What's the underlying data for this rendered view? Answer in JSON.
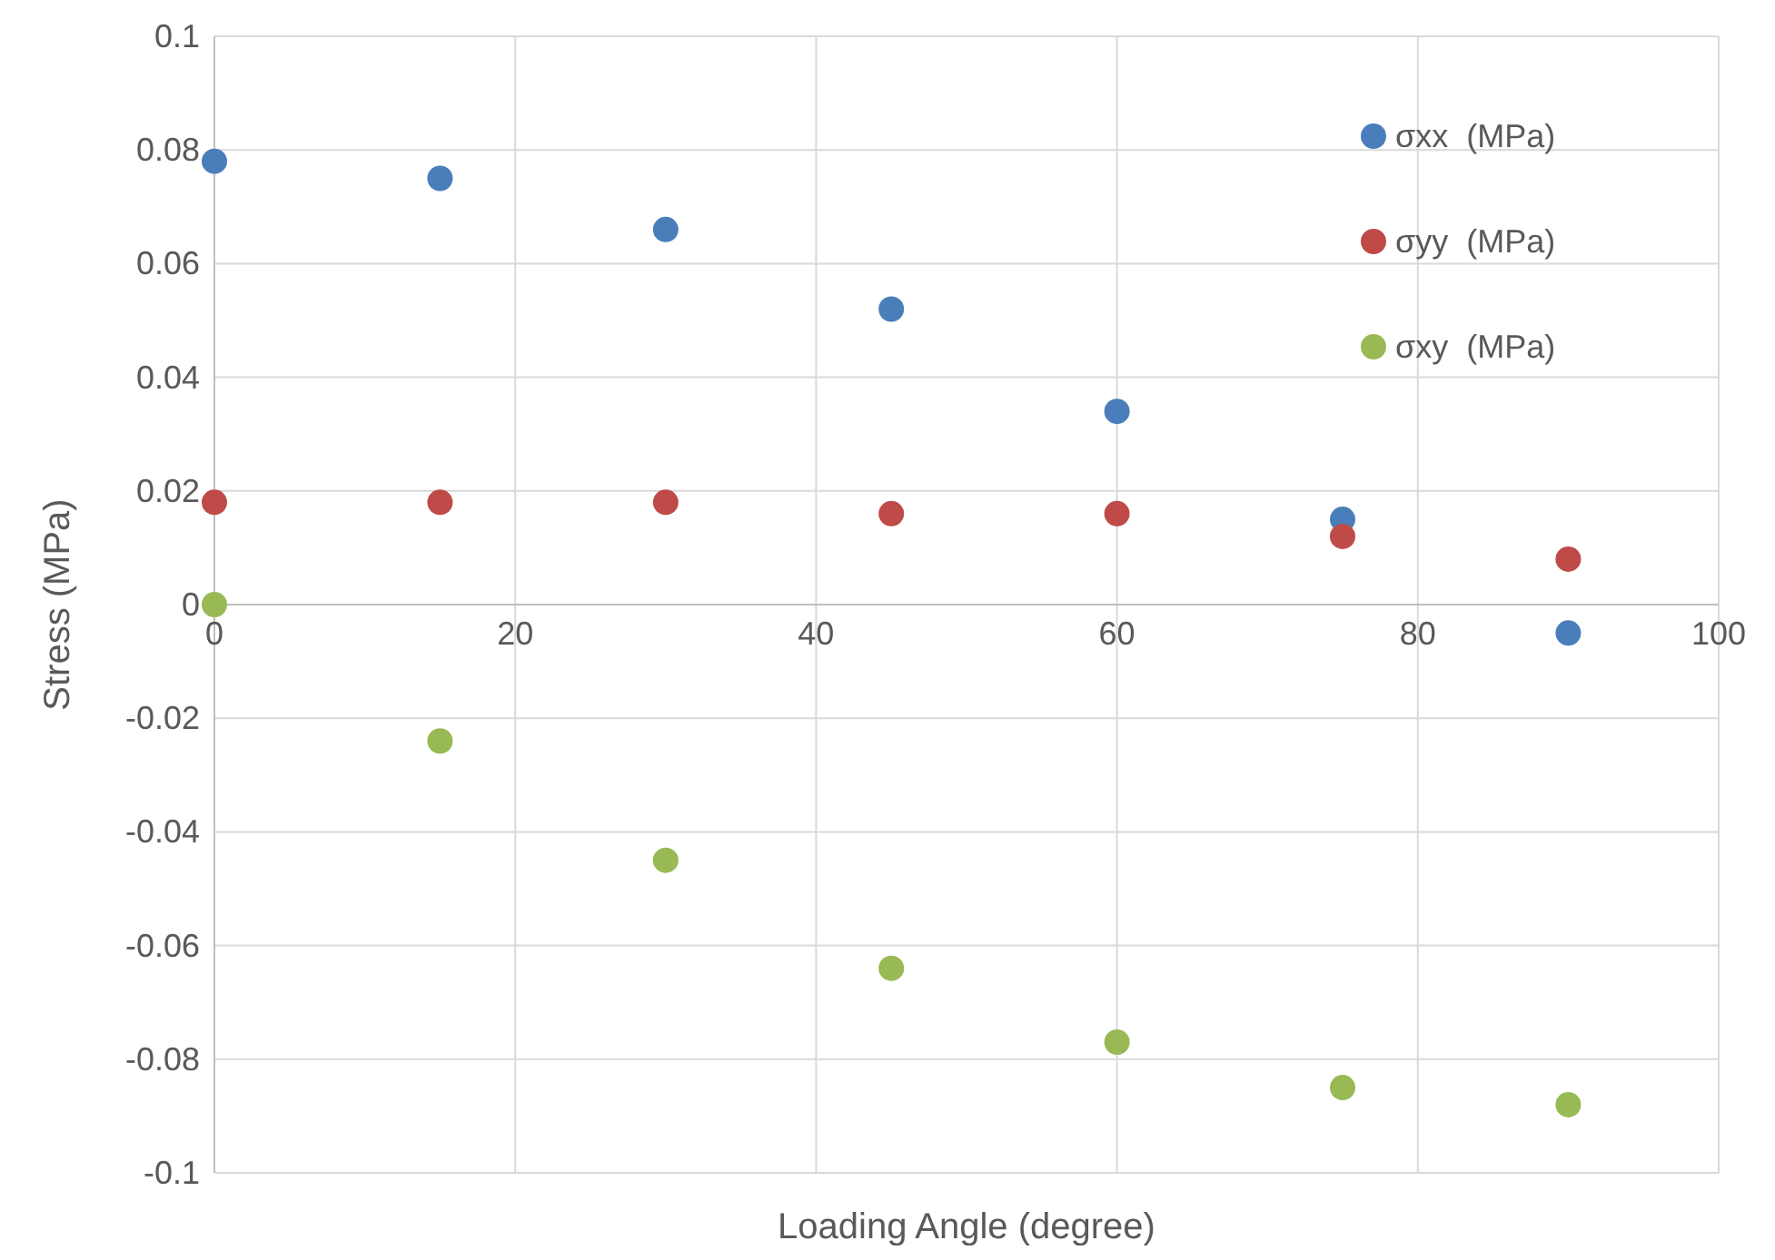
{
  "chart_data": {
    "type": "scatter",
    "xlabel": "Loading Angle (degree)",
    "ylabel": "Stress (MPa)",
    "x": [
      0,
      15,
      30,
      45,
      60,
      75,
      90
    ],
    "series": [
      {
        "name": "σxx  (MPa)",
        "color": "#4a7ebb",
        "values": [
          0.078,
          0.075,
          0.066,
          0.052,
          0.034,
          0.015,
          -0.005
        ]
      },
      {
        "name": "σyy  (MPa)",
        "color": "#be4b48",
        "values": [
          0.018,
          0.018,
          0.018,
          0.016,
          0.016,
          0.012,
          0.008
        ]
      },
      {
        "name": "σxy  (MPa)",
        "color": "#98b954",
        "values": [
          0,
          -0.024,
          -0.045,
          -0.064,
          -0.077,
          -0.085,
          -0.088
        ]
      }
    ],
    "xlim": [
      0,
      100
    ],
    "xticks": [
      0,
      20,
      40,
      60,
      80,
      100
    ],
    "ylim": [
      -0.1,
      0.1
    ],
    "yticks": [
      -0.1,
      -0.08,
      -0.06,
      -0.04,
      -0.02,
      0,
      0.02,
      0.04,
      0.06,
      0.08,
      0.1
    ],
    "grid": true,
    "legend": "top right",
    "marker": "circle"
  }
}
